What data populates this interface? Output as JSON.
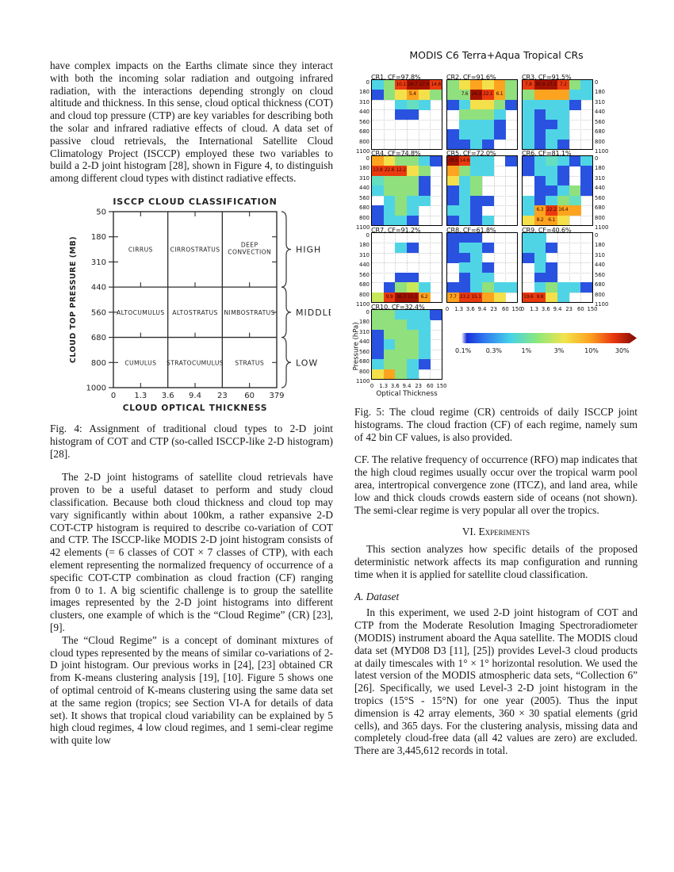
{
  "paper": {
    "left": {
      "para1": "have complex impacts on the Earths climate since they interact with both the incoming solar radiation and outgoing infrared radiation, with the interactions depending strongly on cloud altitude and thickness. In this sense, cloud optical thickness (COT) and cloud top pressure (CTP) are key variables for describing both the solar and infrared radiative effects of cloud. A data set of passive cloud retrievals, the International Satellite Cloud Climatology Project (ISCCP) employed these two variables to build a 2-D joint histogram [28], shown in Figure 4, to distinguish among different cloud types with distinct radiative effects.",
      "para2": "The 2-D joint histograms of satellite cloud retrievals have proven to be a useful dataset to perform and study cloud classification. Because both cloud thickness and cloud top may vary significantly within about 100km, a rather expansive 2-D COT-CTP histogram is required to describe co-variation of COT and CTP. The ISCCP-like MODIS 2-D joint histogram consists of 42 elements (= 6 classes of COT × 7 classes of CTP), with each element representing the normalized frequency of occurrence of a specific COT-CTP combination as cloud fraction (CF) ranging from 0 to 1. A big scientific challenge is to group the satellite images represented by the 2-D joint histograms into different clusters, one example of which is the “Cloud Regime” (CR) [23], [9].",
      "para3": "The “Cloud Regime” is a concept of dominant mixtures of cloud types represented by the means of similar co-variations of 2-D joint histogram. Our previous works in [24], [23] obtained CR from K-means clustering analysis [19], [10]. Figure 5 shows one of optimal centroid of K-means clustering using the same data set at the same region (tropics; see Section VI-A for details of data set). It shows that tropical cloud variability can be explained by 5 high cloud regimes, 4 low cloud regimes, and 1 semi-clear regime with quite low"
    },
    "right": {
      "para_cf": "CF. The relative frequency of occurrence (RFO) map indicates that the high cloud regimes usually occur over the tropical warm pool area, intertropical convergence zone (ITCZ), and land area, while low and thick clouds crowds eastern side of oceans (not shown). The semi-clear regime is very popular all over the tropics.",
      "section_number": "VI.",
      "section_title": "Experiments",
      "para_section": "This section analyzes how specific details of the proposed deterministic network affects its map configuration and running time when it is applied for satellite cloud classification.",
      "subsection": "A. Dataset",
      "para_dataset": "In this experiment, we used 2-D joint histogram of COT and CTP from the Moderate Resolution Imaging Spectroradiometer (MODIS) instrument aboard the Aqua satellite. The MODIS cloud data set (MYD08 D3 [11], [25]) provides Level-3 cloud products at daily timescales with 1° × 1° horizontal resolution. We used the latest version of the MODIS atmospheric data sets, “Collection 6” [26]. Specifically, we used Level-3 2-D joint histogram in the tropics (15°S - 15°N) for one year (2005). Thus the input dimension is 42 array elements, 360 × 30 spatial elements (grid cells), and 365 days. For the clustering analysis, missing data and completely cloud-free data (all 42 values are zero) are excluded. There are 3,445,612 records in total."
    }
  },
  "fig4": {
    "title": "ISCCP CLOUD CLASSIFICATION",
    "ylabel": "CLOUD TOP PRESSURE (MB)",
    "xlabel": "CLOUD OPTICAL THICKNESS",
    "yticks": [
      "50",
      "180",
      "310",
      "440",
      "560",
      "680",
      "800",
      "1000"
    ],
    "xticks": [
      "0",
      "1.3",
      "3.6",
      "9.4",
      "23",
      "60",
      "379"
    ],
    "rows": [
      {
        "level": "HIGH",
        "cells": [
          "CIRRUS",
          "CIRROSTRATUS",
          "DEEP\nCONVECTION"
        ]
      },
      {
        "level": "MIDDLE",
        "cells": [
          "ALTOCUMULUS",
          "ALTOSTRATUS",
          "NIMBOSTRATUS"
        ]
      },
      {
        "level": "LOW",
        "cells": [
          "CUMULUS",
          "STRATOCUMULUS",
          "STRATUS"
        ]
      }
    ],
    "caption": "Fig. 4: Assignment of traditional cloud types to 2-D joint histogram of COT and CTP (so-called ISCCP-like 2-D histogram) [28]."
  },
  "fig5": {
    "title": "MODIS C6 Terra+Aqua Tropical CRs",
    "ylabel": "Pressure (hPa)",
    "xlabel": "Optical Thickness",
    "yticks": [
      "0",
      "180",
      "310",
      "440",
      "560",
      "680",
      "800",
      "1100"
    ],
    "xticks": [
      "0",
      "1.3",
      "3.6",
      "9.4",
      "23",
      "60",
      "150"
    ],
    "palette": {
      "W": "#ffffff",
      "B": "#2a52e0",
      "C": "#4fd4e6",
      "T": "#66dfc0",
      "G": "#90e07e",
      "y": "#c8e85a",
      "Y": "#f4e04a",
      "O": "#fca41f",
      "R": "#ea3a10",
      "D": "#a31200"
    },
    "value_color": "#3c0500",
    "colorbar_labels": [
      "0.1%",
      "0.3%",
      "1%",
      "3%",
      "10%",
      "30%"
    ],
    "panels": [
      {
        "id": "cr1",
        "label": "CR1. CF=97.8%",
        "col": 0,
        "row": 0,
        "yside": "left",
        "xlabels": false,
        "cells": [
          "CGRDDR",
          "BGYOYG",
          "WWCTCW",
          "WWBBWW",
          "WWWWWW",
          "WWWWWW",
          "WWWWWW"
        ],
        "values": [
          [
            0,
            2,
            "10.1"
          ],
          [
            0,
            3,
            "26.7"
          ],
          [
            0,
            4,
            "27.6"
          ],
          [
            0,
            5,
            "14.8"
          ],
          [
            1,
            3,
            "5.4"
          ]
        ]
      },
      {
        "id": "cr2",
        "label": "CR2. CF=91.6%",
        "col": 1,
        "row": 0,
        "yside": null,
        "xlabels": false,
        "cells": [
          "GYOYOG",
          "GGDROG",
          "BCYYGB",
          "WGGGCW",
          "WCCCBW",
          "BCCCBW",
          "BBCBWW"
        ],
        "values": [
          [
            1,
            1,
            "7.6"
          ],
          [
            1,
            2,
            "24.3"
          ],
          [
            1,
            3,
            "22.1"
          ],
          [
            1,
            4,
            "6.1"
          ]
        ]
      },
      {
        "id": "cr3",
        "label": "CR3. CF=91.5%",
        "col": 2,
        "row": 0,
        "yside": "right",
        "xlabels": false,
        "cells": [
          "RDDRGC",
          "GOOOCC",
          "CCCCBW",
          "CBCCWW",
          "CBBCWW",
          "CBCCWW",
          "CBCBWW"
        ],
        "values": [
          [
            0,
            0,
            "7.8"
          ],
          [
            0,
            1,
            "30.9"
          ],
          [
            0,
            2,
            "27.2"
          ],
          [
            0,
            3,
            "7.2"
          ]
        ]
      },
      {
        "id": "cr4",
        "label": "CR4. CF=74.8%",
        "col": 0,
        "row": 1,
        "yside": "left",
        "xlabels": false,
        "cells": [
          "OYGGCB",
          "RRRYGW",
          "TGGGBW",
          "CGGGBW",
          "WCGCCW",
          "BCGCWW",
          "BCCBWW"
        ],
        "values": [
          [
            1,
            0,
            "13.8"
          ],
          [
            1,
            1,
            "22.6"
          ],
          [
            1,
            2,
            "12.2"
          ]
        ]
      },
      {
        "id": "cr5",
        "label": "CR5. CF=72.0%",
        "col": 1,
        "row": 1,
        "yside": null,
        "xlabels": false,
        "cells": [
          "DRCCWB",
          "OGCCWW",
          "YCGWWW",
          "BCGWWW",
          "BCBBWW",
          "CCBWWW",
          "BCBCWW"
        ],
        "values": [
          [
            0,
            0,
            "38.8"
          ],
          [
            0,
            1,
            "14.6"
          ]
        ]
      },
      {
        "id": "cr6",
        "label": "CR6. CF=81.1%",
        "col": 2,
        "row": 1,
        "yside": "right",
        "xlabels": false,
        "cells": [
          "BCTCBC",
          "BCCBWB",
          "WBCBWB",
          "WBBCGB",
          "CBCGTW",
          "COROOW",
          "YOOYWW"
        ],
        "values": [
          [
            5,
            1,
            "6.3"
          ],
          [
            5,
            2,
            "22.2"
          ],
          [
            5,
            3,
            "16.4"
          ],
          [
            6,
            1,
            "8.2"
          ],
          [
            6,
            2,
            "6.1"
          ]
        ]
      },
      {
        "id": "cr7",
        "label": "CR7. CF=91.2%",
        "col": 0,
        "row": 2,
        "yside": "left",
        "xlabels": false,
        "cells": [
          "WWWWWW",
          "WWCBWW",
          "WWWWWW",
          "WWWWWW",
          "WWBBWW",
          "WBGyCW",
          "yRDDOW"
        ],
        "values": [
          [
            6,
            1,
            "9.9"
          ],
          [
            6,
            2,
            "36.3"
          ],
          [
            6,
            3,
            "11.1"
          ],
          [
            6,
            4,
            "6.2"
          ]
        ]
      },
      {
        "id": "cr8",
        "label": "CR8. CF=61.8%",
        "col": 1,
        "row": 2,
        "yside": null,
        "xlabels": true,
        "cells": [
          "BBBWWW",
          "BCCBWW",
          "BBCWWW",
          "WCCBWW",
          "WBCCWW",
          "BBCGCC",
          "ORROYW"
        ],
        "values": [
          [
            6,
            0,
            "7.7"
          ],
          [
            6,
            1,
            "23.2"
          ],
          [
            6,
            2,
            "15.1"
          ]
        ]
      },
      {
        "id": "cr9",
        "label": "CR9. CF=40.6%",
        "col": 2,
        "row": 2,
        "yside": "right",
        "xlabels": true,
        "cells": [
          "CCWWWW",
          "CCBWWW",
          "BCWWWW",
          "WCBWWW",
          "WBBWWW",
          "WCGCCB",
          "RRYCWW"
        ],
        "values": [
          [
            6,
            0,
            "19.6"
          ],
          [
            6,
            1,
            "9.8"
          ]
        ]
      },
      {
        "id": "cr10",
        "label": "CR10. CF=32.4%",
        "col": 0,
        "row": 3,
        "yside": "left",
        "xlabels": true,
        "axis_labels": true,
        "cells": [
          "GGCCCB",
          "GGGCCW",
          "BGGGCW",
          "BCGGCW",
          "BGGGCW",
          "CGGCBW",
          "YOGCWW"
        ],
        "values": []
      }
    ],
    "caption": "Fig. 5: The cloud regime (CR) centroids of daily ISCCP joint histograms. The cloud fraction (CF) of each regime, namely sum of 42 bin CF values, is also provided."
  }
}
